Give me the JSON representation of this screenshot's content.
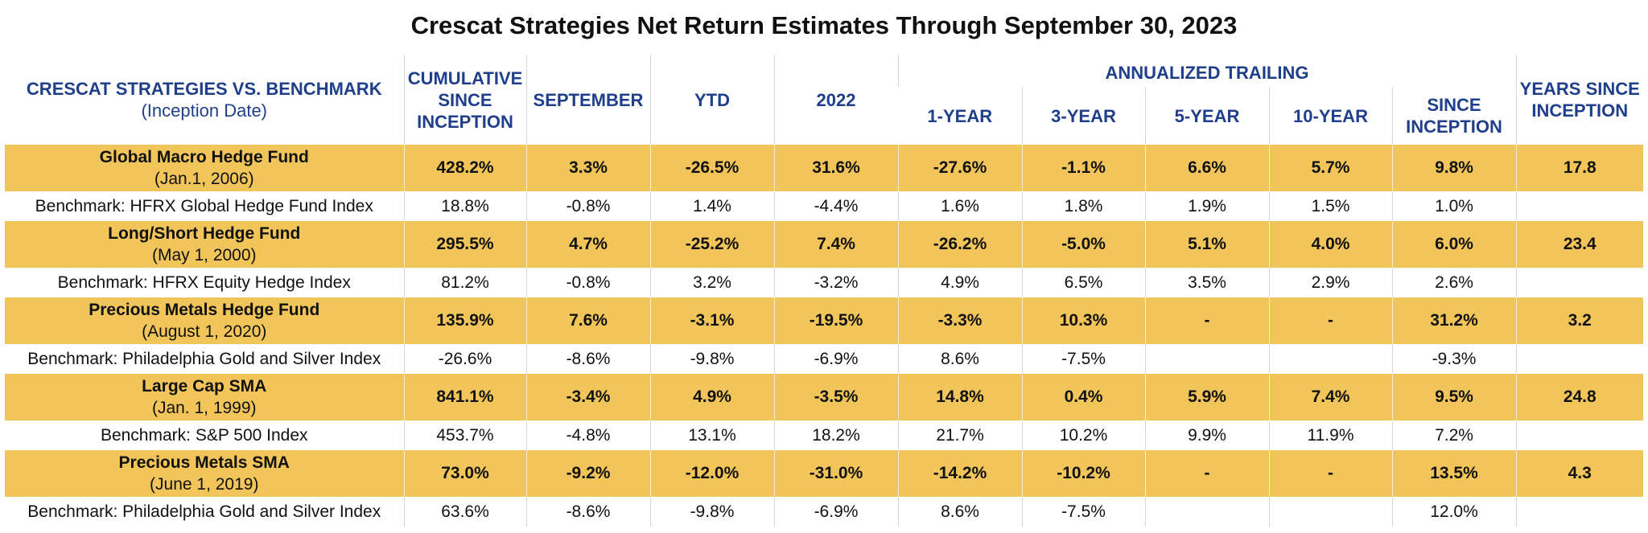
{
  "title": "Crescat Strategies Net Return Estimates Through September 30, 2023",
  "chart_data": {
    "type": "table",
    "title": "Crescat Strategies Net Return Estimates Through September 30, 2023",
    "header": {
      "first": "CRESCAT STRATEGIES VS. BENCHMARK",
      "first_sub": "(Inception Date)",
      "cumulative": "CUMULATIVE SINCE INCEPTION",
      "september": "SEPTEMBER",
      "ytd": "YTD",
      "y2022": "2022",
      "annualized": "ANNUALIZED TRAILING",
      "one_year": "1-YEAR",
      "three_year": "3-YEAR",
      "five_year": "5-YEAR",
      "ten_year": "10-YEAR",
      "since_inception": "SINCE INCEPTION",
      "years_since": "YEARS SINCE INCEPTION"
    },
    "columns": [
      "Cumulative Since Inception",
      "September",
      "YTD",
      "2022",
      "1-Year",
      "3-Year",
      "5-Year",
      "10-Year",
      "Since Inception",
      "Years Since Inception"
    ],
    "rows": [
      {
        "kind": "fund",
        "name": "Global Macro Hedge Fund",
        "inception": "(Jan.1, 2006)",
        "values": [
          "428.2%",
          "3.3%",
          "-26.5%",
          "31.6%",
          "-27.6%",
          "-1.1%",
          "6.6%",
          "5.7%",
          "9.8%",
          "17.8"
        ]
      },
      {
        "kind": "bench",
        "name": "Benchmark: HFRX Global Hedge Fund Index",
        "values": [
          "18.8%",
          "-0.8%",
          "1.4%",
          "-4.4%",
          "1.6%",
          "1.8%",
          "1.9%",
          "1.5%",
          "1.0%",
          ""
        ]
      },
      {
        "kind": "fund",
        "name": "Long/Short Hedge Fund",
        "inception": "(May 1, 2000)",
        "values": [
          "295.5%",
          "4.7%",
          "-25.2%",
          "7.4%",
          "-26.2%",
          "-5.0%",
          "5.1%",
          "4.0%",
          "6.0%",
          "23.4"
        ]
      },
      {
        "kind": "bench",
        "name": "Benchmark: HFRX Equity Hedge Index",
        "values": [
          "81.2%",
          "-0.8%",
          "3.2%",
          "-3.2%",
          "4.9%",
          "6.5%",
          "3.5%",
          "2.9%",
          "2.6%",
          ""
        ]
      },
      {
        "kind": "fund",
        "name": "Precious Metals Hedge Fund",
        "inception": "(August 1, 2020)",
        "values": [
          "135.9%",
          "7.6%",
          "-3.1%",
          "-19.5%",
          "-3.3%",
          "10.3%",
          "-",
          "-",
          "31.2%",
          "3.2"
        ]
      },
      {
        "kind": "bench",
        "name": "Benchmark: Philadelphia Gold and Silver Index",
        "values": [
          "-26.6%",
          "-8.6%",
          "-9.8%",
          "-6.9%",
          "8.6%",
          "-7.5%",
          "",
          "",
          "-9.3%",
          ""
        ]
      },
      {
        "kind": "fund",
        "name": "Large Cap SMA",
        "inception": "(Jan. 1, 1999)",
        "values": [
          "841.1%",
          "-3.4%",
          "4.9%",
          "-3.5%",
          "14.8%",
          "0.4%",
          "5.9%",
          "7.4%",
          "9.5%",
          "24.8"
        ]
      },
      {
        "kind": "bench",
        "name": "Benchmark: S&P 500 Index",
        "values": [
          "453.7%",
          "-4.8%",
          "13.1%",
          "18.2%",
          "21.7%",
          "10.2%",
          "9.9%",
          "11.9%",
          "7.2%",
          ""
        ]
      },
      {
        "kind": "fund",
        "name": "Precious Metals SMA",
        "inception": "(June 1, 2019)",
        "values": [
          "73.0%",
          "-9.2%",
          "-12.0%",
          "-31.0%",
          "-14.2%",
          "-10.2%",
          "-",
          "-",
          "13.5%",
          "4.3"
        ]
      },
      {
        "kind": "bench",
        "name": "Benchmark: Philadelphia Gold and Silver Index",
        "values": [
          "63.6%",
          "-8.6%",
          "-9.8%",
          "-6.9%",
          "8.6%",
          "-7.5%",
          "",
          "",
          "12.0%",
          ""
        ]
      }
    ]
  },
  "colors": {
    "header_text": "#1f3f8b",
    "fund_row_background": "#f1c55a",
    "benchmark_row_background": "#ffffff",
    "body_text": "#111111"
  }
}
